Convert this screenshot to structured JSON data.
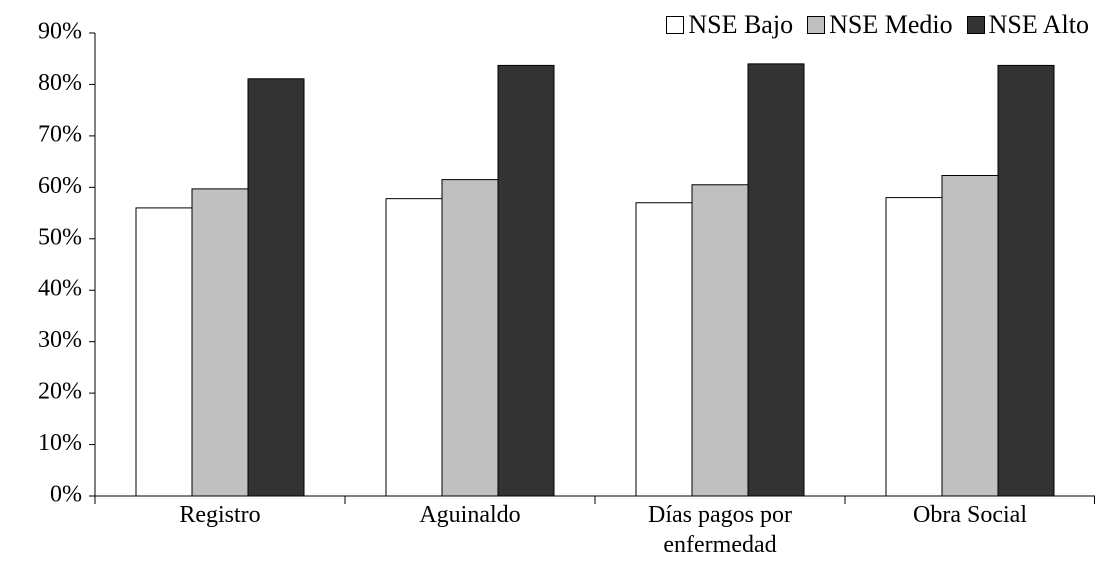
{
  "chart_data": {
    "type": "bar",
    "categories": [
      "Registro",
      "Aguinaldo",
      "Días pagos por enfermedad",
      "Obra Social"
    ],
    "series": [
      {
        "name": "NSE Bajo",
        "color": "#ffffff",
        "values": [
          56.0,
          57.8,
          57.0,
          58.0
        ]
      },
      {
        "name": "NSE Medio",
        "color": "#c0c0c0",
        "values": [
          59.7,
          61.5,
          60.5,
          62.3
        ]
      },
      {
        "name": "NSE Alto",
        "color": "#333333",
        "values": [
          81.1,
          83.7,
          84.0,
          83.7
        ]
      }
    ],
    "ylim": [
      0,
      90
    ],
    "yticks": [
      {
        "value": 0,
        "label": "0%"
      },
      {
        "value": 10,
        "label": "10%"
      },
      {
        "value": 20,
        "label": "20%"
      },
      {
        "value": 30,
        "label": "30%"
      },
      {
        "value": 40,
        "label": "40%"
      },
      {
        "value": 50,
        "label": "50%"
      },
      {
        "value": 60,
        "label": "60%"
      },
      {
        "value": 70,
        "label": "70%"
      },
      {
        "value": 80,
        "label": "80%"
      },
      {
        "value": 90,
        "label": "90%"
      }
    ],
    "grid": false,
    "legend": "top-right"
  }
}
